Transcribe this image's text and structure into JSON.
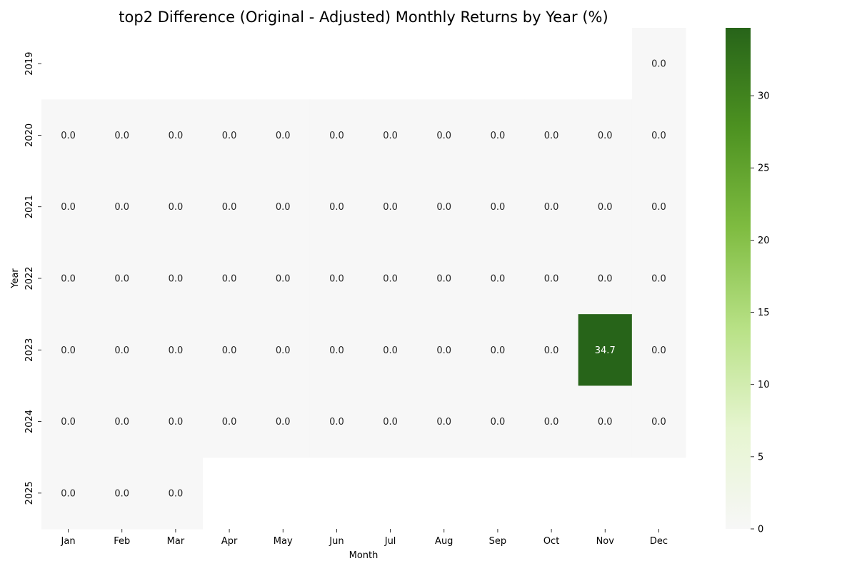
{
  "chart_data": {
    "type": "heatmap",
    "title": "top2 Difference (Original - Adjusted) Monthly Returns by Year (%)",
    "xlabel": "Month",
    "ylabel": "Year",
    "x_categories": [
      "Jan",
      "Feb",
      "Mar",
      "Apr",
      "May",
      "Jun",
      "Jul",
      "Aug",
      "Sep",
      "Oct",
      "Nov",
      "Dec"
    ],
    "y_categories": [
      "2019",
      "2020",
      "2021",
      "2022",
      "2023",
      "2024",
      "2025"
    ],
    "values": [
      [
        null,
        null,
        null,
        null,
        null,
        null,
        null,
        null,
        null,
        null,
        null,
        0.0
      ],
      [
        0.0,
        0.0,
        0.0,
        0.0,
        0.0,
        0.0,
        0.0,
        0.0,
        0.0,
        0.0,
        0.0,
        0.0
      ],
      [
        0.0,
        0.0,
        0.0,
        0.0,
        0.0,
        0.0,
        0.0,
        0.0,
        0.0,
        0.0,
        0.0,
        0.0
      ],
      [
        0.0,
        0.0,
        0.0,
        0.0,
        0.0,
        0.0,
        0.0,
        0.0,
        0.0,
        0.0,
        0.0,
        0.0
      ],
      [
        0.0,
        0.0,
        0.0,
        0.0,
        0.0,
        0.0,
        0.0,
        0.0,
        0.0,
        0.0,
        34.7,
        0.0
      ],
      [
        0.0,
        0.0,
        0.0,
        0.0,
        0.0,
        0.0,
        0.0,
        0.0,
        0.0,
        0.0,
        0.0,
        0.0
      ],
      [
        0.0,
        0.0,
        0.0,
        null,
        null,
        null,
        null,
        null,
        null,
        null,
        null,
        null
      ]
    ],
    "value_format": "0.0",
    "colorbar": {
      "range": [
        0,
        34.7
      ],
      "ticks": [
        "0",
        "5",
        "10",
        "15",
        "20",
        "25",
        "30"
      ]
    },
    "colormap": [
      "#f7f7f7",
      "#e6f5d0",
      "#b8e186",
      "#7fbc41",
      "#4d9221",
      "#276419"
    ],
    "grid": false,
    "legend": "colorbar-right"
  }
}
